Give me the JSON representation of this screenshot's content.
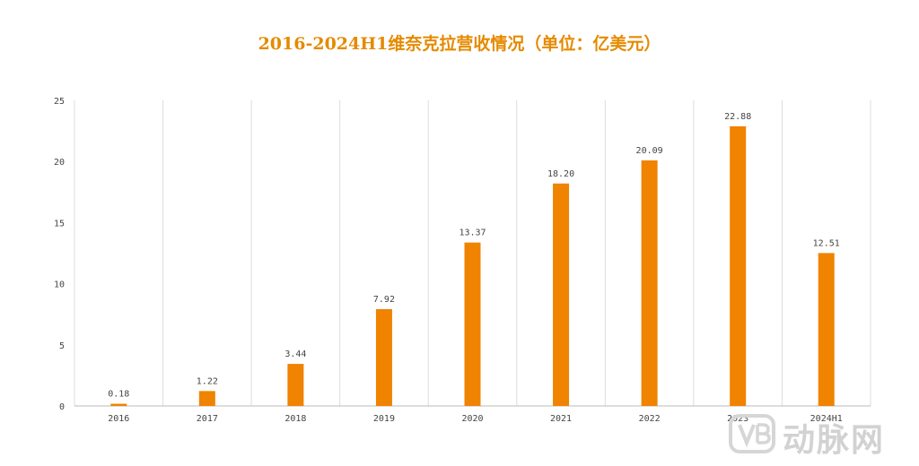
{
  "title": "2016-2024H1维奈克拉营收情况（单位：亿美元）",
  "colors": {
    "bar": "#F08300",
    "title": "#E58A00",
    "grid": "#dddddd",
    "axis": "#bbbbbb"
  },
  "chart_data": {
    "type": "bar",
    "title": "2016-2024H1维奈克拉营收情况（单位：亿美元）",
    "categories": [
      "2016",
      "2017",
      "2018",
      "2019",
      "2020",
      "2021",
      "2022",
      "2023",
      "2024H1"
    ],
    "values": [
      0.18,
      1.22,
      3.44,
      7.92,
      13.37,
      18.2,
      20.09,
      22.88,
      12.51
    ],
    "data_labels": [
      "0.18",
      "1.22",
      "3.44",
      "7.92",
      "13.37",
      "18.20",
      "20.09",
      "22.88",
      "12.51"
    ],
    "ylim": [
      0,
      25
    ],
    "yticks": [
      0,
      5,
      10,
      15,
      20,
      25
    ],
    "grid": "vertical",
    "xlabel": "",
    "ylabel": ""
  },
  "watermark": {
    "text": "动脉网",
    "logo": "VB"
  }
}
